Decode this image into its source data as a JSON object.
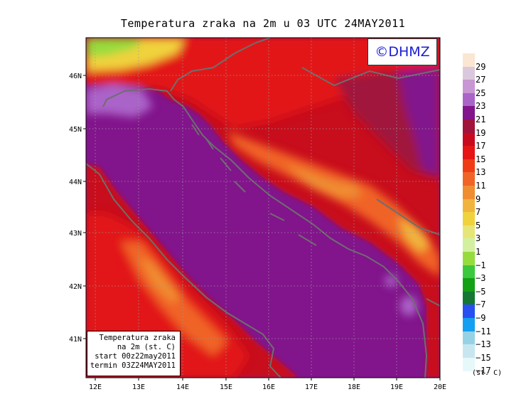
{
  "title": "Temperatura zraka na 2m u 03 UTC 24MAY2011",
  "logo": "©DHMZ",
  "info_box": {
    "line1": "Temperatura zraka",
    "line2": "na 2m (st. C)",
    "line3": "start 00z22may2011",
    "line4": "termin 03Z24MAY2011"
  },
  "axes": {
    "lat_ticks": [
      "46N",
      "45N",
      "44N",
      "43N",
      "42N",
      "41N"
    ],
    "lon_ticks": [
      "12E",
      "13E",
      "14E",
      "15E",
      "16E",
      "17E",
      "18E",
      "19E",
      "20E"
    ]
  },
  "legend": {
    "unit": "(st. C)",
    "labels": [
      "29",
      "27",
      "25",
      "23",
      "21",
      "19",
      "17",
      "15",
      "13",
      "11",
      "9",
      "7",
      "5",
      "3",
      "1",
      "−1",
      "−3",
      "−5",
      "−7",
      "−9",
      "−11",
      "−13",
      "−15",
      "−17"
    ],
    "colors": [
      "#fae6d2",
      "#dcc8dc",
      "#c896d2",
      "#aa64c8",
      "#82148c",
      "#a0143c",
      "#c80a1e",
      "#e61414",
      "#f03c14",
      "#f06428",
      "#f08c32",
      "#f0b43c",
      "#f0d23c",
      "#e6e678",
      "#d2f0a0",
      "#96dc3c",
      "#3cc83c",
      "#14a014",
      "#147832",
      "#2850f0",
      "#14a0f0",
      "#96d2e6",
      "#c8e6f0",
      "#e6f8fa"
    ]
  },
  "colors": {
    "sea": "#82148c",
    "coast": "#6e6e6e"
  }
}
